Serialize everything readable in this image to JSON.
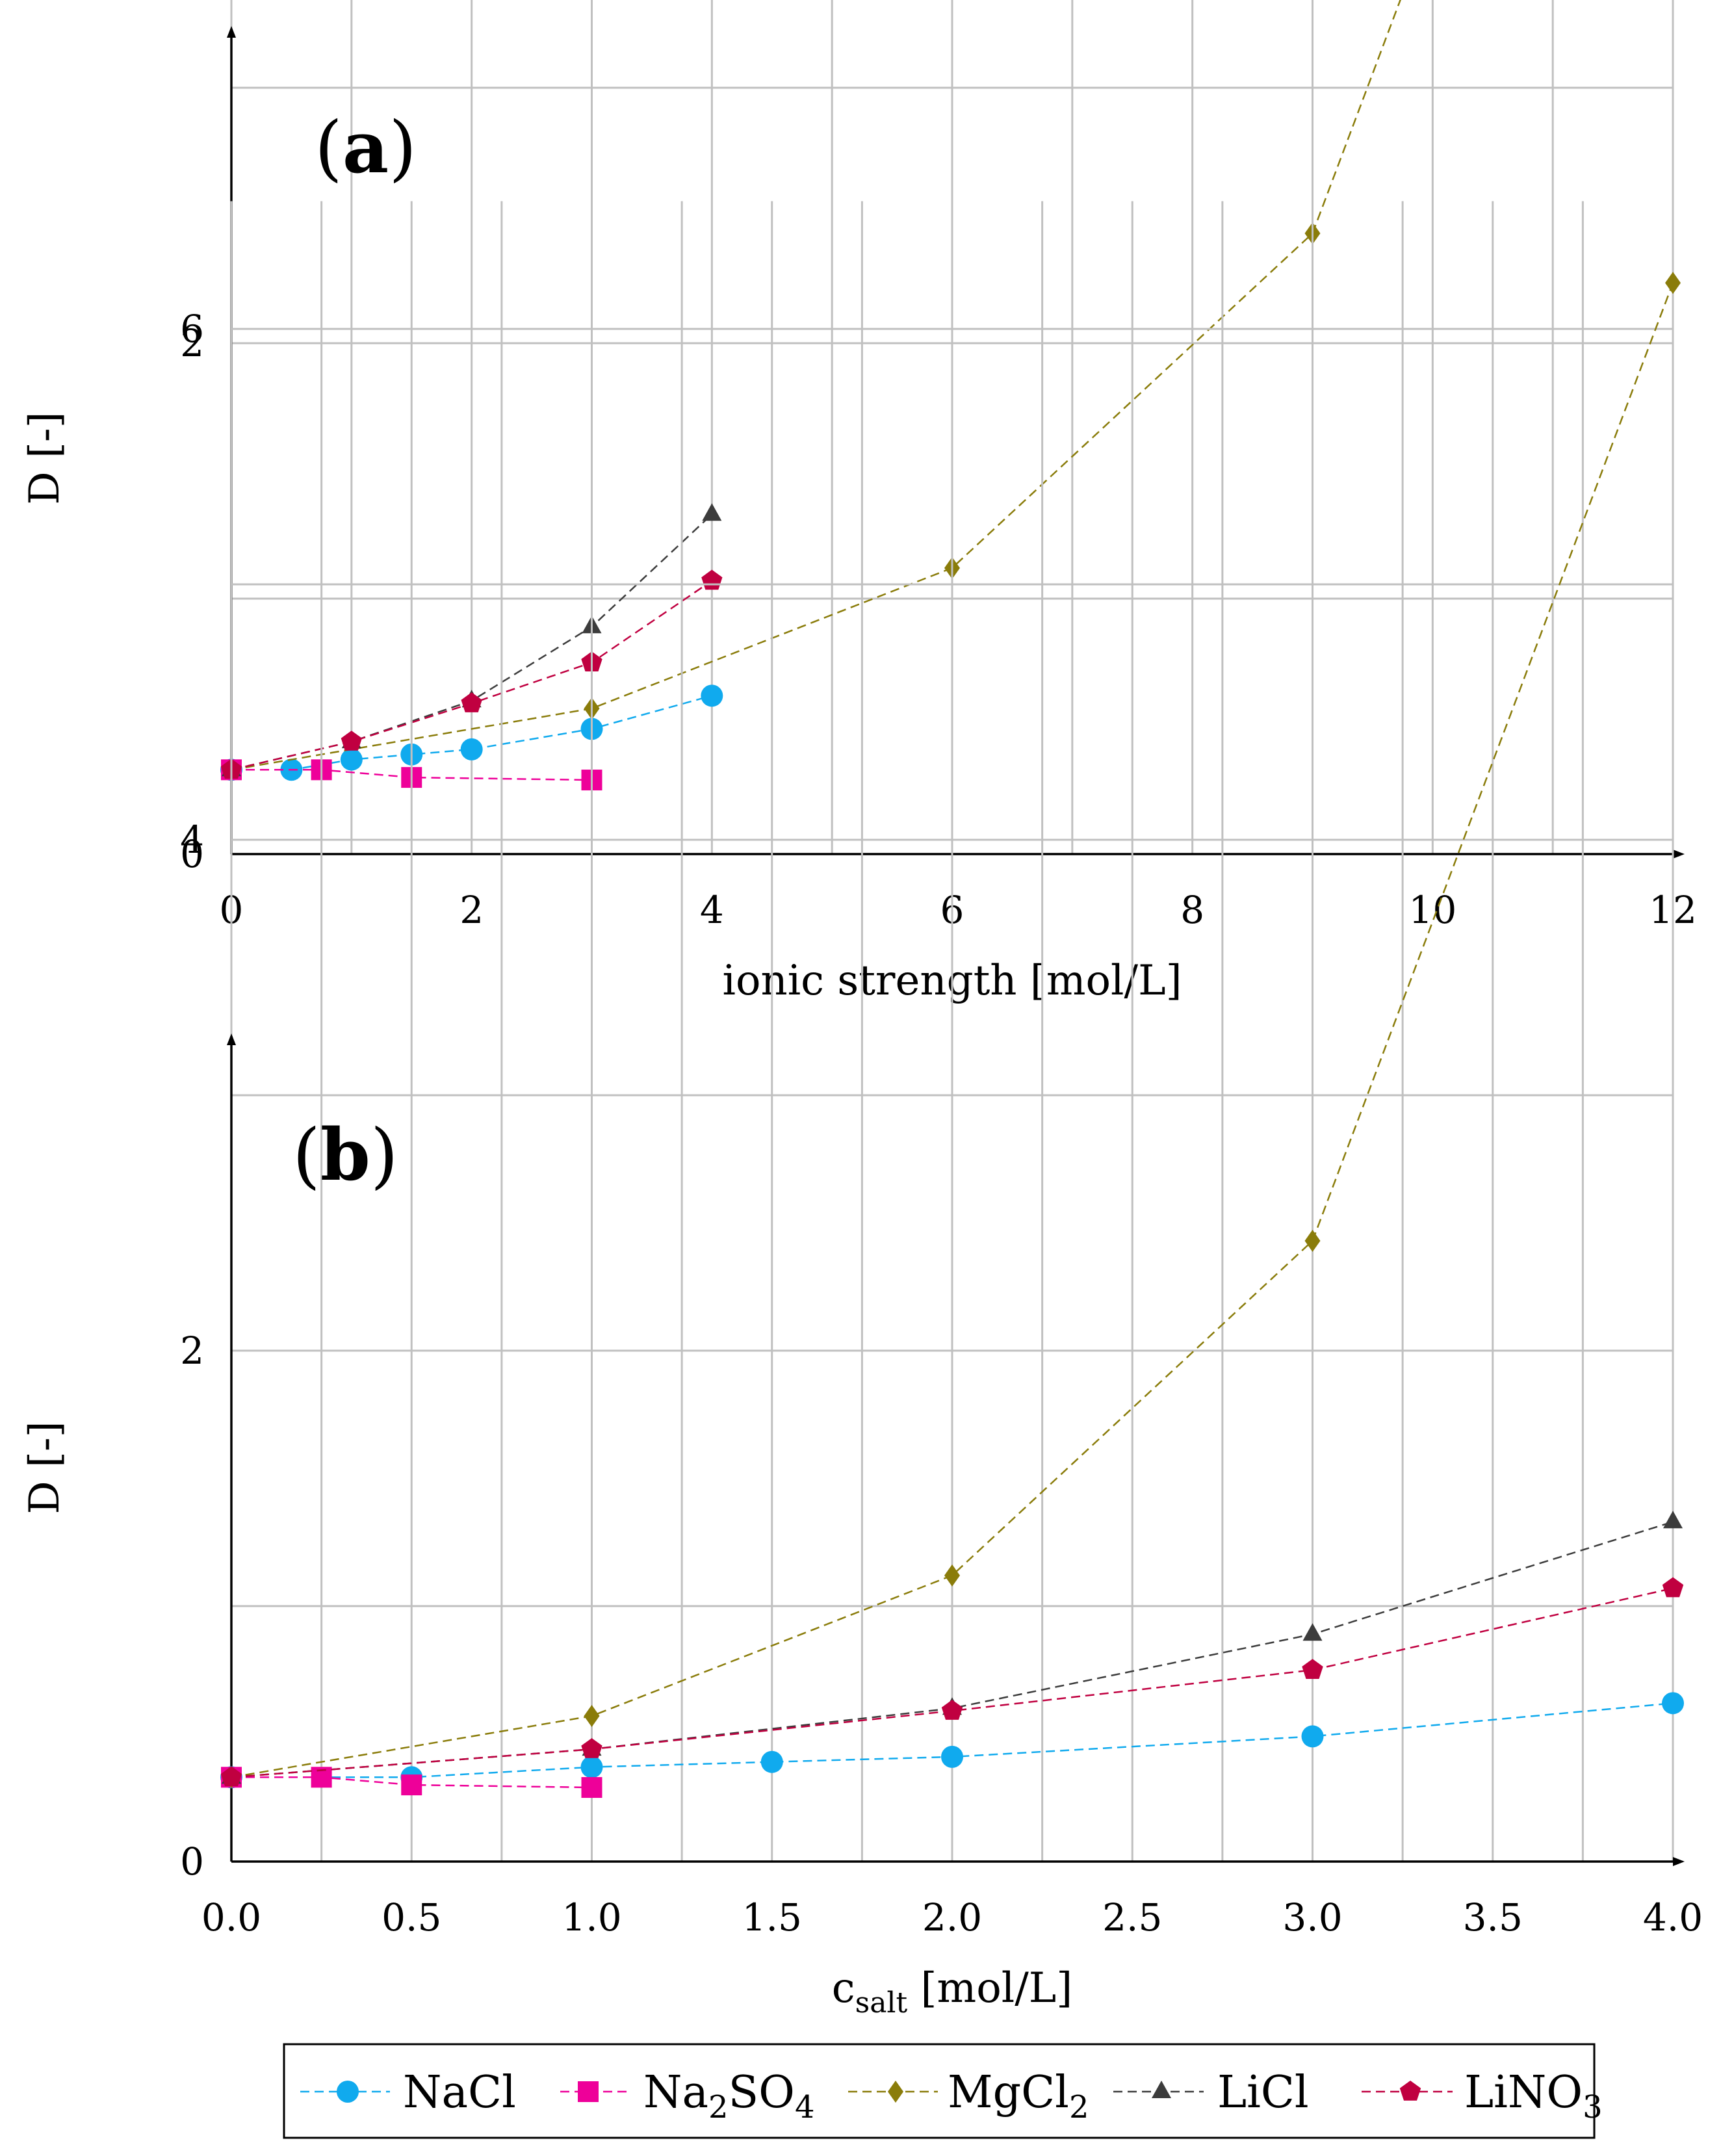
{
  "chart_data": [
    {
      "type": "line",
      "panel_label": "(a)",
      "xlabel": "ionic strength [mol/L]",
      "ylabel": "D [-]",
      "xlim": [
        0,
        12
      ],
      "ylim": [
        0,
        6.5
      ],
      "xticks": [
        "0",
        "2",
        "4",
        "6",
        "8",
        "10",
        "12"
      ],
      "xtick_values": [
        0,
        2,
        4,
        6,
        8,
        10,
        12
      ],
      "x_minor_grid": [
        1,
        3,
        5,
        7,
        9,
        11
      ],
      "yticks": [
        "0",
        "2",
        "4",
        "6"
      ],
      "ytick_values": [
        0,
        2,
        4,
        6
      ],
      "y_minor_grid": [
        1,
        3,
        5
      ],
      "grid": true,
      "series": [
        {
          "name": "NaCl",
          "x": [
            0,
            0.5,
            1,
            1.5,
            2,
            3,
            4
          ],
          "values": [
            0.33,
            0.33,
            0.37,
            0.39,
            0.41,
            0.49,
            0.62
          ]
        },
        {
          "name": "Na2SO4",
          "x": [
            0,
            0.75,
            1.5,
            3
          ],
          "values": [
            0.33,
            0.33,
            0.3,
            0.29
          ]
        },
        {
          "name": "MgCl2",
          "x": [
            0,
            3,
            6,
            9,
            12
          ],
          "values": [
            0.33,
            0.57,
            1.12,
            2.43,
            6.18
          ]
        },
        {
          "name": "LiCl",
          "x": [
            0,
            1,
            2,
            3,
            4
          ],
          "values": [
            0.33,
            0.44,
            0.6,
            0.89,
            1.33
          ]
        },
        {
          "name": "LiNO3",
          "x": [
            0,
            1,
            2,
            3,
            4
          ],
          "values": [
            0.33,
            0.44,
            0.59,
            0.75,
            1.07
          ]
        }
      ]
    },
    {
      "type": "line",
      "panel_label": "(b)",
      "xlabel": "c",
      "xlabel_sub": "salt",
      "xlabel_unit": " [mol/L]",
      "ylabel": "D [-]",
      "xlim": [
        0,
        4
      ],
      "ylim": [
        0,
        6.5
      ],
      "xticks": [
        "0.0",
        "0.5",
        "1.0",
        "1.5",
        "2.0",
        "2.5",
        "3.0",
        "3.5",
        "4.0"
      ],
      "xtick_values": [
        0,
        0.5,
        1,
        1.5,
        2,
        2.5,
        3,
        3.5,
        4
      ],
      "x_minor_grid": [
        0.25,
        0.75,
        1.25,
        1.75,
        2.25,
        2.75,
        3.25,
        3.75
      ],
      "yticks": [
        "0",
        "2",
        "4",
        "6"
      ],
      "ytick_values": [
        0,
        2,
        4,
        6
      ],
      "y_minor_grid": [
        1,
        3,
        5
      ],
      "grid": true,
      "series": [
        {
          "name": "NaCl",
          "x": [
            0,
            0.5,
            1,
            1.5,
            2,
            3,
            4
          ],
          "values": [
            0.33,
            0.33,
            0.37,
            0.39,
            0.41,
            0.49,
            0.62
          ]
        },
        {
          "name": "Na2SO4",
          "x": [
            0,
            0.25,
            0.5,
            1
          ],
          "values": [
            0.33,
            0.33,
            0.3,
            0.29
          ]
        },
        {
          "name": "MgCl2",
          "x": [
            0,
            1,
            2,
            3,
            4
          ],
          "values": [
            0.33,
            0.57,
            1.12,
            2.43,
            6.18
          ]
        },
        {
          "name": "LiCl",
          "x": [
            0,
            1,
            2,
            3,
            4
          ],
          "values": [
            0.33,
            0.44,
            0.6,
            0.89,
            1.33
          ]
        },
        {
          "name": "LiNO3",
          "x": [
            0,
            1,
            2,
            3,
            4
          ],
          "values": [
            0.33,
            0.44,
            0.59,
            0.75,
            1.07
          ]
        }
      ]
    }
  ],
  "legend": {
    "placement": "bottom",
    "entries": [
      {
        "name": "NaCl",
        "label": "NaCl",
        "label_sub": "",
        "label_tail": "",
        "color": "#10aaee",
        "marker": "circle"
      },
      {
        "name": "Na2SO4",
        "label": "Na",
        "label_sub": "2",
        "label_tail": "SO",
        "label_sub2": "4",
        "color": "#ee0099",
        "marker": "square"
      },
      {
        "name": "MgCl2",
        "label": "MgCl",
        "label_sub": "2",
        "label_tail": "",
        "color": "#8a7c0a",
        "marker": "diamond"
      },
      {
        "name": "LiCl",
        "label": "LiCl",
        "label_sub": "",
        "label_tail": "",
        "color": "#3c3c3c",
        "marker": "triangle"
      },
      {
        "name": "LiNO3",
        "label": "LiNO",
        "label_sub": "3",
        "label_tail": "",
        "color": "#c00040",
        "marker": "pentagon"
      }
    ]
  }
}
